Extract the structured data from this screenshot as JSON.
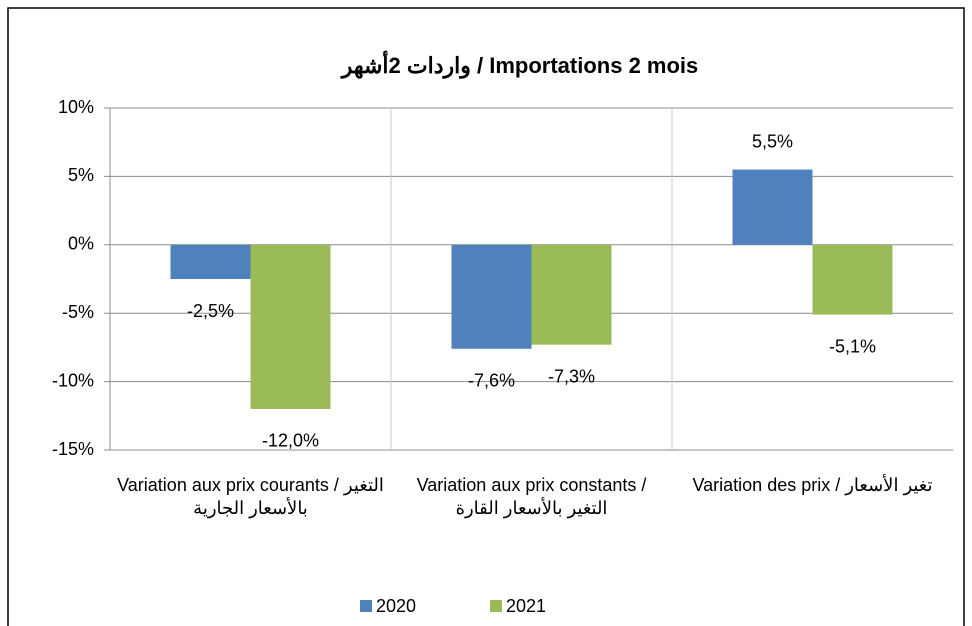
{
  "chart_data": {
    "type": "bar",
    "title": "واردات 2أشهر  / Importations 2 mois",
    "categories": [
      "Variation aux prix courants / التغير بالأسعار الجارية",
      "Variation aux prix constants / التغير بالأسعار القارة",
      "Variation des prix / تغير الأسعار"
    ],
    "series": [
      {
        "name": "2020",
        "color": "#4f81bd",
        "values": [
          -2.5,
          -7.6,
          5.5
        ],
        "value_labels": [
          "-2,5%",
          "-7,6%",
          "5,5%"
        ]
      },
      {
        "name": "2021",
        "color": "#9bbb59",
        "values": [
          -12.0,
          -7.3,
          -5.1
        ],
        "value_labels": [
          "-12,0%",
          "-7,3%",
          "-5,1%"
        ]
      }
    ],
    "ylim": [
      -15,
      10
    ],
    "yticks": [
      {
        "value": -15,
        "label": "-15%"
      },
      {
        "value": -10,
        "label": "-10%"
      },
      {
        "value": -5,
        "label": "-5%"
      },
      {
        "value": 0,
        "label": "0%"
      },
      {
        "value": 5,
        "label": "5%"
      },
      {
        "value": 10,
        "label": "10%"
      }
    ],
    "grid": true,
    "legend": "bottom"
  }
}
